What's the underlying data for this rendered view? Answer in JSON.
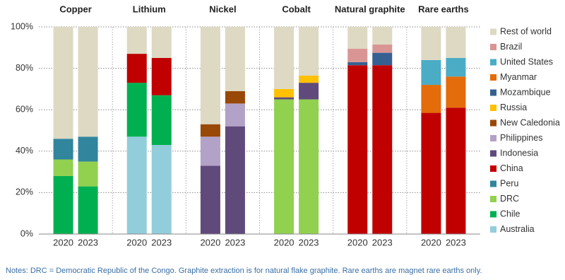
{
  "chart_data": {
    "type": "bar",
    "stacked": true,
    "groups": [
      "Copper",
      "Lithium",
      "Nickel",
      "Cobalt",
      "Natural graphite",
      "Rare earths"
    ],
    "categories": [
      "2020",
      "2023",
      "2020",
      "2023",
      "2020",
      "2023",
      "2020",
      "2023",
      "2020",
      "2023",
      "2020",
      "2023"
    ],
    "ylim": [
      0,
      100
    ],
    "yticks": [
      {
        "value": 0,
        "label": "0%"
      },
      {
        "value": 20,
        "label": "20%"
      },
      {
        "value": 40,
        "label": "40%"
      },
      {
        "value": 60,
        "label": "60%"
      },
      {
        "value": 80,
        "label": "80%"
      },
      {
        "value": 100,
        "label": "100%"
      }
    ],
    "grid": true,
    "legend": "right",
    "series": [
      {
        "name": "Australia",
        "color": "#92cddc",
        "values": [
          null,
          null,
          47,
          43,
          null,
          null,
          null,
          null,
          null,
          null,
          null,
          null
        ]
      },
      {
        "name": "Chile",
        "color": "#00b050",
        "values": [
          28,
          23,
          26,
          24,
          null,
          null,
          null,
          null,
          null,
          null,
          null,
          null
        ]
      },
      {
        "name": "DRC",
        "color": "#92d050",
        "values": [
          8,
          12,
          null,
          null,
          null,
          null,
          65,
          65,
          null,
          null,
          null,
          null
        ]
      },
      {
        "name": "Peru",
        "color": "#31859c",
        "values": [
          10,
          12,
          null,
          null,
          null,
          null,
          null,
          null,
          null,
          null,
          null,
          null
        ]
      },
      {
        "name": "China",
        "color": "#c00000",
        "values": [
          null,
          null,
          14,
          18,
          null,
          null,
          null,
          null,
          81.5,
          81.5,
          58.5,
          61
        ]
      },
      {
        "name": "Indonesia",
        "color": "#604a7b",
        "values": [
          null,
          null,
          null,
          null,
          33,
          52,
          1,
          8,
          null,
          null,
          null,
          null
        ]
      },
      {
        "name": "Philippines",
        "color": "#b3a2c7",
        "values": [
          null,
          null,
          null,
          null,
          14,
          11,
          null,
          null,
          null,
          null,
          null,
          null
        ]
      },
      {
        "name": "New Caledonia",
        "color": "#984807",
        "values": [
          null,
          null,
          null,
          null,
          6,
          6,
          null,
          null,
          null,
          null,
          null,
          null
        ]
      },
      {
        "name": "Russia",
        "color": "#ffc000",
        "values": [
          null,
          null,
          null,
          null,
          null,
          null,
          4,
          3.5,
          null,
          null,
          null,
          null
        ]
      },
      {
        "name": "Mozambique",
        "color": "#376092",
        "values": [
          null,
          null,
          null,
          null,
          null,
          null,
          null,
          null,
          1.5,
          6,
          null,
          null
        ]
      },
      {
        "name": "Myanmar",
        "color": "#e46c0a",
        "values": [
          null,
          null,
          null,
          null,
          null,
          null,
          null,
          null,
          null,
          null,
          13.5,
          15
        ]
      },
      {
        "name": "United States",
        "color": "#4bacc6",
        "values": [
          null,
          null,
          null,
          null,
          null,
          null,
          null,
          null,
          null,
          null,
          12,
          9
        ]
      },
      {
        "name": "Brazil",
        "color": "#d99594",
        "values": [
          null,
          null,
          null,
          null,
          null,
          null,
          null,
          null,
          6.5,
          4,
          null,
          null
        ]
      },
      {
        "name": "Rest of world",
        "color": "#ddd9c3",
        "values": [
          54,
          53,
          13,
          15,
          47,
          31,
          30,
          23.5,
          10.5,
          8.5,
          16,
          15
        ]
      }
    ],
    "notes": "Notes: DRC = Democratic Republic of the Congo. Graphite extraction is for natural flake graphite. Rare earths are magnet rare earths only."
  }
}
